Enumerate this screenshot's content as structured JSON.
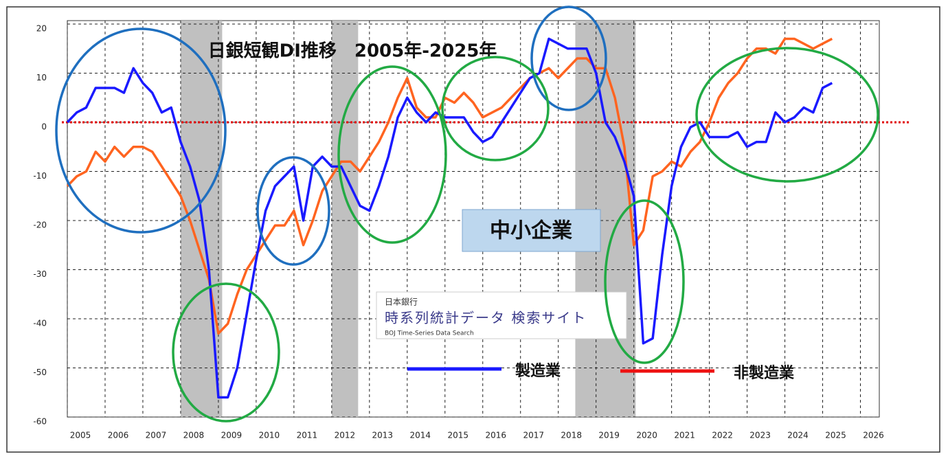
{
  "chart_data": {
    "type": "line",
    "title": "日銀短観DI推移　2005年-2025年",
    "subtitle": "中小企業",
    "watermark": {
      "top": "日本銀行",
      "main": "時系列統計データ 検索サイト",
      "bottom": "BOJ Time-Series Data Search"
    },
    "x": [
      2005,
      2005.25,
      2005.5,
      2005.75,
      2006,
      2006.25,
      2006.5,
      2006.75,
      2007,
      2007.25,
      2007.5,
      2007.75,
      2008,
      2008.25,
      2008.5,
      2008.75,
      2009,
      2009.25,
      2009.5,
      2009.75,
      2010,
      2010.25,
      2010.5,
      2010.75,
      2011,
      2011.25,
      2011.5,
      2011.75,
      2012,
      2012.25,
      2012.5,
      2012.75,
      2013,
      2013.25,
      2013.5,
      2013.75,
      2014,
      2014.25,
      2014.5,
      2014.75,
      2015,
      2015.25,
      2015.5,
      2015.75,
      2016,
      2016.25,
      2016.5,
      2016.75,
      2017,
      2017.25,
      2017.5,
      2017.75,
      2018,
      2018.25,
      2018.5,
      2018.75,
      2019,
      2019.25,
      2019.5,
      2019.75,
      2020,
      2020.25,
      2020.5,
      2020.75,
      2021,
      2021.25,
      2021.5,
      2021.75,
      2022,
      2022.25,
      2022.5,
      2022.75,
      2023,
      2023.25,
      2023.5,
      2023.75,
      2024,
      2024.25,
      2024.5,
      2024.75,
      2025,
      2025.25
    ],
    "series": [
      {
        "name": "製造業",
        "color": "#1a1aff",
        "legend_color": "#1a1aff",
        "values": [
          0,
          2,
          3,
          7,
          7,
          7,
          6,
          11,
          8,
          6,
          2,
          3,
          -4,
          -9,
          -16,
          -30,
          -56,
          -56,
          -50,
          -39,
          -28,
          -18,
          -13,
          -11,
          -9,
          -20,
          -9,
          -7,
          -9,
          -9,
          -13,
          -17,
          -18,
          -13,
          -7,
          1,
          5,
          2,
          0,
          2,
          1,
          1,
          1,
          -2,
          -4,
          -3,
          0,
          3,
          6,
          9,
          10,
          17,
          16,
          15,
          15,
          15,
          10,
          0,
          -3,
          -8,
          -15,
          -45,
          -44,
          -27,
          -13,
          -5,
          -1,
          0,
          -3,
          -3,
          -3,
          -2,
          -5,
          -4,
          -4,
          2,
          0,
          1,
          3,
          2,
          7,
          8
        ]
      },
      {
        "name": "非製造業",
        "color": "#ff6420",
        "legend_color": "#ee1111",
        "values": [
          -13,
          -11,
          -10,
          -6,
          -8,
          -5,
          -7,
          -5,
          -5,
          -6,
          -9,
          -12,
          -15,
          -20,
          -26,
          -32,
          -43,
          -41,
          -35,
          -30,
          -27,
          -24,
          -21,
          -21,
          -18,
          -25,
          -20,
          -14,
          -11,
          -8,
          -8,
          -10,
          -7,
          -4,
          0,
          5,
          9,
          3,
          1,
          1,
          5,
          4,
          6,
          4,
          1,
          2,
          3,
          5,
          7,
          9,
          10,
          11,
          9,
          11,
          13,
          13,
          11,
          11,
          5,
          -5,
          -25,
          -22,
          -11,
          -10,
          -8,
          -9,
          -6,
          -4,
          0,
          5,
          8,
          10,
          13,
          15,
          15,
          14,
          17,
          17,
          16,
          15,
          16,
          17
        ]
      }
    ],
    "xlim": [
      2005,
      2026.5
    ],
    "xticks": [
      2005,
      2006,
      2007,
      2008,
      2009,
      2010,
      2011,
      2012,
      2013,
      2014,
      2015,
      2016,
      2017,
      2018,
      2019,
      2020,
      2021,
      2022,
      2023,
      2024,
      2025,
      2026
    ],
    "ylim": [
      -60,
      20
    ],
    "yticks": [
      20,
      10,
      0,
      -10,
      -20,
      -30,
      -40,
      -50,
      -60
    ],
    "grid": true,
    "reference_line": 0,
    "reference_color": "#e00000",
    "shaded_periods": [
      [
        2008,
        2009.1
      ],
      [
        2012,
        2012.7
      ],
      [
        2018.45,
        2020.05
      ]
    ],
    "shade_color": "#c0c0c0"
  }
}
